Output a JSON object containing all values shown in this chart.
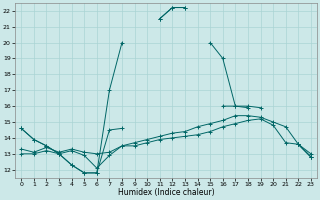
{
  "title": "",
  "xlabel": "Humidex (Indice chaleur)",
  "ylabel": "",
  "bg_color": "#cce8e8",
  "grid_color": "#aad4d4",
  "line_color": "#006666",
  "xlim": [
    -0.5,
    23.5
  ],
  "ylim": [
    11.5,
    22.5
  ],
  "yticks": [
    12,
    13,
    14,
    15,
    16,
    17,
    18,
    19,
    20,
    21,
    22
  ],
  "xticks": [
    0,
    1,
    2,
    3,
    4,
    5,
    6,
    7,
    8,
    9,
    10,
    11,
    12,
    13,
    14,
    15,
    16,
    17,
    18,
    19,
    20,
    21,
    22,
    23
  ],
  "line1_x": [
    0,
    1,
    2,
    3,
    4,
    5,
    6,
    7,
    8,
    9,
    10,
    11,
    12,
    13,
    14,
    15,
    16,
    17,
    18,
    19,
    20,
    21,
    22,
    23
  ],
  "line1_y": [
    14.6,
    13.9,
    13.5,
    13.0,
    12.3,
    11.8,
    11.8,
    17.0,
    20.0,
    null,
    null,
    21.5,
    22.2,
    22.2,
    null,
    20.0,
    19.0,
    16.0,
    16.0,
    15.9,
    null,
    null,
    13.6,
    12.8
  ],
  "line2_x": [
    0,
    1,
    2,
    3,
    4,
    5,
    6,
    7,
    8,
    9,
    10,
    11,
    12,
    13,
    14,
    15,
    16,
    17,
    18,
    19,
    20,
    21,
    22,
    23
  ],
  "line2_y": [
    14.6,
    13.9,
    13.5,
    13.0,
    12.3,
    11.8,
    11.8,
    14.5,
    14.6,
    null,
    null,
    21.5,
    22.2,
    22.2,
    null,
    null,
    16.0,
    16.0,
    15.9,
    null,
    null,
    null,
    13.6,
    12.8
  ],
  "line3_x": [
    0,
    1,
    2,
    3,
    4,
    5,
    6,
    7,
    8,
    9,
    10,
    11,
    12,
    13,
    14,
    15,
    16,
    17,
    18,
    19,
    20,
    21,
    22,
    23
  ],
  "line3_y": [
    13.0,
    13.0,
    13.2,
    13.0,
    13.2,
    12.9,
    12.1,
    12.9,
    13.5,
    13.5,
    13.7,
    13.9,
    14.0,
    14.1,
    14.2,
    14.4,
    14.7,
    14.9,
    15.1,
    15.2,
    14.8,
    13.7,
    13.6,
    12.8
  ],
  "line4_x": [
    0,
    1,
    2,
    3,
    4,
    5,
    6,
    7,
    8,
    9,
    10,
    11,
    12,
    13,
    14,
    15,
    16,
    17,
    18,
    19,
    20,
    21,
    22,
    23
  ],
  "line4_y": [
    13.3,
    13.1,
    13.4,
    13.1,
    13.3,
    13.1,
    13.0,
    13.1,
    13.5,
    13.7,
    13.9,
    14.1,
    14.3,
    14.4,
    14.7,
    14.9,
    15.1,
    15.4,
    15.4,
    15.3,
    15.0,
    14.7,
    13.6,
    13.0
  ]
}
